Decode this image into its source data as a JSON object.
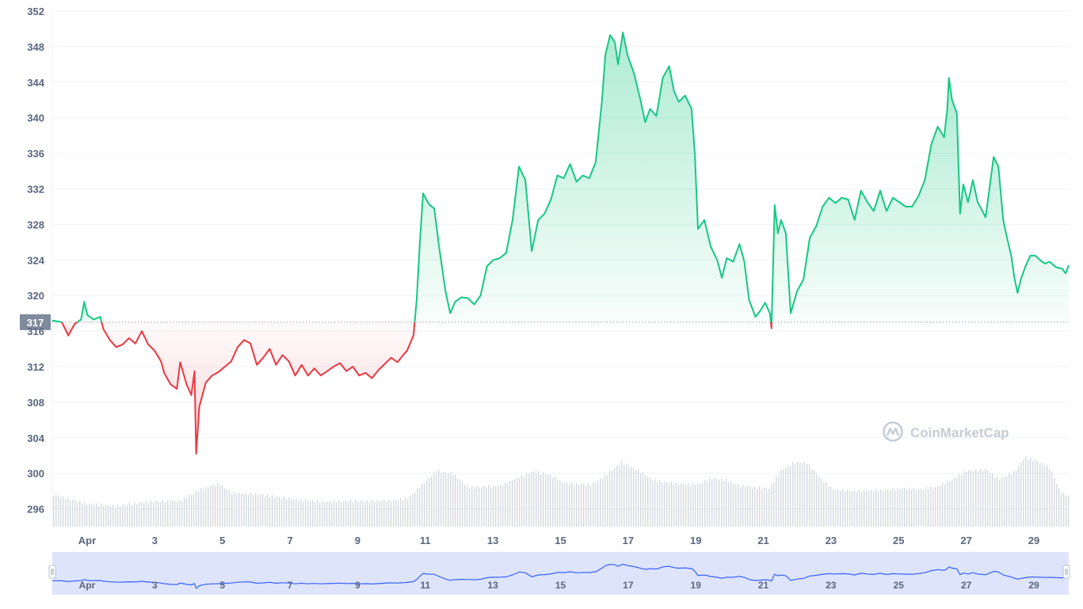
{
  "watermark": {
    "text": "CoinMarketCap",
    "icon": "coinmarketcap-logo-icon"
  },
  "colors": {
    "up": "#16c784",
    "down": "#ea3943",
    "volume": "#d6d9df",
    "navigator_fill": "#dde4fb",
    "navigator_line": "#3861fb",
    "grid": "#eff2f5",
    "ref_badge": "#808a9d"
  },
  "chart_data": {
    "type": "line",
    "title": "",
    "xlabel": "",
    "ylabel": "",
    "baseline": 317,
    "baseline_label": "317",
    "ylim": [
      294,
      352
    ],
    "y_ticks": [
      296,
      300,
      304,
      308,
      312,
      316,
      320,
      324,
      328,
      332,
      336,
      340,
      344,
      348,
      352
    ],
    "x_range_days": [
      0,
      29.92
    ],
    "x_ticks": [
      {
        "day": 1,
        "label": "Apr"
      },
      {
        "day": 3,
        "label": "3"
      },
      {
        "day": 5,
        "label": "5"
      },
      {
        "day": 7,
        "label": "7"
      },
      {
        "day": 9,
        "label": "9"
      },
      {
        "day": 11,
        "label": "11"
      },
      {
        "day": 13,
        "label": "13"
      },
      {
        "day": 15,
        "label": "15"
      },
      {
        "day": 17,
        "label": "17"
      },
      {
        "day": 19,
        "label": "19"
      },
      {
        "day": 21,
        "label": "21"
      },
      {
        "day": 23,
        "label": "23"
      },
      {
        "day": 25,
        "label": "25"
      },
      {
        "day": 27,
        "label": "27"
      },
      {
        "day": 29,
        "label": "29"
      }
    ],
    "series": [
      {
        "points": [
          [
            0,
            317.2
          ],
          [
            0.3,
            317.0
          ],
          [
            0.5,
            315.5
          ],
          [
            0.7,
            316.8
          ],
          [
            0.9,
            317.3
          ],
          [
            1.0,
            319.3
          ],
          [
            1.1,
            317.8
          ],
          [
            1.3,
            317.3
          ],
          [
            1.5,
            317.6
          ],
          [
            1.6,
            316.2
          ],
          [
            1.8,
            315.0
          ],
          [
            2.0,
            314.2
          ],
          [
            2.2,
            314.5
          ],
          [
            2.4,
            315.2
          ],
          [
            2.6,
            314.6
          ],
          [
            2.8,
            316.0
          ],
          [
            3.0,
            314.5
          ],
          [
            3.2,
            313.8
          ],
          [
            3.4,
            312.6
          ],
          [
            3.5,
            311.3
          ],
          [
            3.7,
            310.0
          ],
          [
            3.9,
            309.5
          ],
          [
            4.0,
            312.5
          ],
          [
            4.2,
            310.0
          ],
          [
            4.35,
            308.8
          ],
          [
            4.45,
            311.5
          ],
          [
            4.5,
            302.2
          ],
          [
            4.6,
            307.5
          ],
          [
            4.8,
            310.2
          ],
          [
            5.0,
            311.0
          ],
          [
            5.2,
            311.4
          ],
          [
            5.4,
            312.0
          ],
          [
            5.6,
            312.6
          ],
          [
            5.8,
            314.2
          ],
          [
            6.0,
            315.0
          ],
          [
            6.2,
            314.6
          ],
          [
            6.4,
            312.2
          ],
          [
            6.6,
            313.0
          ],
          [
            6.8,
            314.0
          ],
          [
            7.0,
            312.2
          ],
          [
            7.2,
            313.3
          ],
          [
            7.4,
            312.6
          ],
          [
            7.6,
            311.0
          ],
          [
            7.8,
            312.2
          ],
          [
            8.0,
            311.0
          ],
          [
            8.2,
            311.8
          ],
          [
            8.4,
            311.0
          ],
          [
            8.6,
            311.5
          ],
          [
            8.8,
            312.0
          ],
          [
            9.0,
            312.4
          ],
          [
            9.2,
            311.5
          ],
          [
            9.4,
            312.0
          ],
          [
            9.6,
            311.0
          ],
          [
            9.8,
            311.3
          ],
          [
            10.0,
            310.7
          ],
          [
            10.2,
            311.6
          ],
          [
            10.4,
            312.3
          ],
          [
            10.6,
            313.0
          ],
          [
            10.8,
            312.5
          ],
          [
            11.0,
            313.4
          ],
          [
            11.1,
            313.8
          ],
          [
            11.3,
            315.5
          ],
          [
            11.4,
            319.5
          ],
          [
            11.5,
            326.0
          ],
          [
            11.6,
            331.5
          ],
          [
            11.7,
            330.8
          ],
          [
            11.8,
            330.2
          ],
          [
            11.95,
            329.8
          ],
          [
            12.1,
            325.5
          ],
          [
            12.3,
            320.5
          ],
          [
            12.45,
            318.0
          ],
          [
            12.6,
            319.3
          ],
          [
            12.8,
            319.8
          ],
          [
            13.0,
            319.7
          ],
          [
            13.2,
            319.0
          ],
          [
            13.4,
            320.0
          ],
          [
            13.6,
            323.3
          ],
          [
            13.8,
            324.0
          ],
          [
            14.0,
            324.2
          ],
          [
            14.2,
            324.8
          ],
          [
            14.4,
            328.5
          ],
          [
            14.6,
            334.5
          ],
          [
            14.8,
            333.0
          ],
          [
            15.0,
            325.0
          ],
          [
            15.2,
            328.5
          ],
          [
            15.4,
            329.2
          ],
          [
            15.6,
            330.8
          ],
          [
            15.8,
            333.5
          ],
          [
            16.0,
            333.2
          ],
          [
            16.2,
            334.8
          ],
          [
            16.4,
            332.8
          ],
          [
            16.6,
            333.5
          ],
          [
            16.8,
            333.2
          ],
          [
            17.0,
            335.0
          ],
          [
            17.2,
            342.0
          ],
          [
            17.3,
            347.0
          ],
          [
            17.45,
            349.3
          ],
          [
            17.6,
            348.5
          ],
          [
            17.7,
            346.0
          ],
          [
            17.85,
            349.6
          ],
          [
            18.0,
            347.0
          ],
          [
            18.2,
            345.0
          ],
          [
            18.4,
            342.0
          ],
          [
            18.55,
            339.5
          ],
          [
            18.7,
            341.0
          ],
          [
            18.9,
            340.2
          ],
          [
            19.1,
            344.5
          ],
          [
            19.3,
            345.8
          ],
          [
            19.45,
            343.0
          ],
          [
            19.6,
            341.8
          ],
          [
            19.8,
            342.5
          ],
          [
            20.0,
            341.0
          ],
          [
            20.1,
            336.0
          ],
          [
            20.2,
            327.5
          ],
          [
            20.4,
            328.5
          ],
          [
            20.6,
            325.5
          ],
          [
            20.8,
            324.0
          ],
          [
            20.95,
            322.0
          ],
          [
            21.1,
            324.2
          ],
          [
            21.3,
            323.8
          ],
          [
            21.5,
            325.8
          ],
          [
            21.65,
            323.8
          ],
          [
            21.8,
            319.5
          ],
          [
            22.0,
            317.6
          ],
          [
            22.15,
            318.3
          ],
          [
            22.3,
            319.2
          ],
          [
            22.45,
            318.0
          ],
          [
            22.5,
            316.3
          ],
          [
            22.6,
            330.2
          ],
          [
            22.7,
            327.0
          ],
          [
            22.8,
            328.5
          ],
          [
            22.95,
            327.0
          ],
          [
            23.1,
            318.0
          ],
          [
            23.3,
            320.5
          ],
          [
            23.5,
            321.8
          ],
          [
            23.7,
            326.5
          ],
          [
            23.9,
            327.8
          ],
          [
            24.1,
            330.0
          ],
          [
            24.3,
            331.0
          ],
          [
            24.5,
            330.4
          ],
          [
            24.7,
            331.0
          ],
          [
            24.9,
            330.8
          ],
          [
            25.1,
            328.5
          ],
          [
            25.3,
            331.8
          ],
          [
            25.5,
            330.5
          ],
          [
            25.7,
            329.5
          ],
          [
            25.9,
            331.8
          ],
          [
            26.1,
            329.5
          ],
          [
            26.3,
            331.0
          ],
          [
            26.5,
            330.5
          ],
          [
            26.7,
            330.0
          ],
          [
            26.9,
            330.0
          ],
          [
            27.1,
            331.2
          ],
          [
            27.3,
            333.0
          ],
          [
            27.5,
            337.0
          ],
          [
            27.7,
            339.0
          ],
          [
            27.9,
            337.8
          ],
          [
            28.0,
            341.0
          ],
          [
            28.05,
            344.5
          ],
          [
            28.15,
            342.0
          ],
          [
            28.3,
            340.5
          ],
          [
            28.4,
            329.2
          ],
          [
            28.5,
            332.5
          ],
          [
            28.65,
            330.5
          ],
          [
            28.8,
            333.0
          ],
          [
            28.95,
            330.5
          ],
          [
            29.1,
            329.5
          ],
          [
            29.2,
            328.8
          ],
          [
            29.3,
            331.5
          ],
          [
            29.45,
            335.6
          ],
          [
            29.6,
            334.5
          ],
          [
            29.75,
            328.5
          ],
          [
            29.85,
            326.8
          ],
          [
            30.0,
            324.5
          ],
          [
            30.1,
            322.0
          ],
          [
            30.2,
            320.3
          ],
          [
            30.3,
            321.8
          ],
          [
            30.45,
            323.3
          ],
          [
            30.6,
            324.5
          ],
          [
            30.75,
            324.5
          ],
          [
            30.9,
            324.0
          ],
          [
            31.05,
            323.6
          ],
          [
            31.2,
            323.8
          ],
          [
            31.4,
            323.2
          ],
          [
            31.6,
            323.0
          ],
          [
            31.7,
            322.5
          ],
          [
            31.8,
            323.4
          ]
        ]
      }
    ],
    "volume": [
      [
        0,
        297.6
      ],
      [
        1,
        296.6
      ],
      [
        2,
        296.3
      ],
      [
        3,
        296.8
      ],
      [
        4,
        296.9
      ],
      [
        4.6,
        298.2
      ],
      [
        5.2,
        298.8
      ],
      [
        5.6,
        297.8
      ],
      [
        6.5,
        297.6
      ],
      [
        7.5,
        297.1
      ],
      [
        8.5,
        296.8
      ],
      [
        9.5,
        296.9
      ],
      [
        10.5,
        296.9
      ],
      [
        11.1,
        297.2
      ],
      [
        11.5,
        298.5
      ],
      [
        12.0,
        300.2
      ],
      [
        12.5,
        300.0
      ],
      [
        13.0,
        298.4
      ],
      [
        14.0,
        298.6
      ],
      [
        14.5,
        299.4
      ],
      [
        15.0,
        300.2
      ],
      [
        15.5,
        299.9
      ],
      [
        16.0,
        298.9
      ],
      [
        16.8,
        298.7
      ],
      [
        17.2,
        299.5
      ],
      [
        17.8,
        301.2
      ],
      [
        18.3,
        300.4
      ],
      [
        18.8,
        299.2
      ],
      [
        19.6,
        298.8
      ],
      [
        20.2,
        298.8
      ],
      [
        20.6,
        299.4
      ],
      [
        21.0,
        299.3
      ],
      [
        21.5,
        298.6
      ],
      [
        22.0,
        298.4
      ],
      [
        22.4,
        298.3
      ],
      [
        22.8,
        300.4
      ],
      [
        23.2,
        301.2
      ],
      [
        23.6,
        301.2
      ],
      [
        24.0,
        299.5
      ],
      [
        24.4,
        298.2
      ],
      [
        25.0,
        298.0
      ],
      [
        26.0,
        298.1
      ],
      [
        26.6,
        298.3
      ],
      [
        27.0,
        298.2
      ],
      [
        27.6,
        298.4
      ],
      [
        28.2,
        299.4
      ],
      [
        28.6,
        300.3
      ],
      [
        29.2,
        300.4
      ],
      [
        29.6,
        299.3
      ],
      [
        30.1,
        300.2
      ],
      [
        30.4,
        301.8
      ],
      [
        30.8,
        301.4
      ],
      [
        31.2,
        300.6
      ],
      [
        31.5,
        298.0
      ],
      [
        31.8,
        297.4
      ]
    ]
  }
}
